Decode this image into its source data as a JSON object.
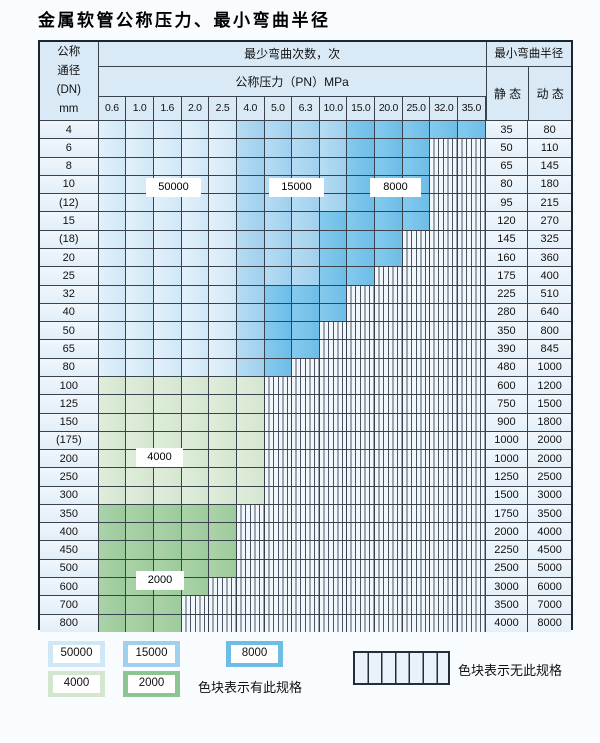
{
  "title": "金属软管公称压力、最小弯曲半径",
  "table": {
    "corner": {
      "lines": [
        "公称",
        "通径",
        "(DN)",
        "mm"
      ]
    },
    "bend_header": "最少弯曲次数，次",
    "pressure_header": "公称压力（PN）MPa",
    "radius_header": "最小弯曲半径",
    "static_label": "静 态",
    "dynamic_label": "动 态",
    "pressure_columns": [
      "0.6",
      "1.0",
      "1.6",
      "2.0",
      "2.5",
      "4.0",
      "5.0",
      "6.3",
      "10.0",
      "15.0",
      "20.0",
      "25.0",
      "32.0",
      "35.0"
    ],
    "cycle_classes": {
      "A": "50000",
      "B": "15000",
      "C": "8000",
      "D": "4000",
      "E": "2000",
      "X": "none"
    },
    "rows": [
      {
        "dn": "4",
        "pattern": "AAAAABBBBCCCCC",
        "static": "35",
        "dynamic": "80"
      },
      {
        "dn": "6",
        "pattern": "AAAAABBBBCCCXX",
        "static": "50",
        "dynamic": "110"
      },
      {
        "dn": "8",
        "pattern": "AAAAABBBBCCCXX",
        "static": "65",
        "dynamic": "145"
      },
      {
        "dn": "10",
        "pattern": "AAAAABBBBCCCXX",
        "static": "80",
        "dynamic": "180"
      },
      {
        "dn": "(12)",
        "pattern": "AAAAABBBBCCCXX",
        "static": "95",
        "dynamic": "215"
      },
      {
        "dn": "15",
        "pattern": "AAAAABBBCCCCXX",
        "static": "120",
        "dynamic": "270"
      },
      {
        "dn": "(18)",
        "pattern": "AAAAABBBCCCXXX",
        "static": "145",
        "dynamic": "325"
      },
      {
        "dn": "20",
        "pattern": "AAAAABBBCCCXXX",
        "static": "160",
        "dynamic": "360"
      },
      {
        "dn": "25",
        "pattern": "AAAAABBBCCXXXX",
        "static": "175",
        "dynamic": "400"
      },
      {
        "dn": "32",
        "pattern": "AAAAABCCCXXXXX",
        "static": "225",
        "dynamic": "510"
      },
      {
        "dn": "40",
        "pattern": "AAAAABCCCXXXXX",
        "static": "280",
        "dynamic": "640"
      },
      {
        "dn": "50",
        "pattern": "AAAAABCCXXXXXX",
        "static": "350",
        "dynamic": "800"
      },
      {
        "dn": "65",
        "pattern": "AAAAABCCXXXXXX",
        "static": "390",
        "dynamic": "845"
      },
      {
        "dn": "80",
        "pattern": "AAAAABCXXXXXXX",
        "static": "480",
        "dynamic": "1000"
      },
      {
        "dn": "100",
        "pattern": "DDDDDDXXXXXXXX",
        "static": "600",
        "dynamic": "1200"
      },
      {
        "dn": "125",
        "pattern": "DDDDDDXXXXXXXX",
        "static": "750",
        "dynamic": "1500"
      },
      {
        "dn": "150",
        "pattern": "DDDDDDXXXXXXXX",
        "static": "900",
        "dynamic": "1800"
      },
      {
        "dn": "(175)",
        "pattern": "DDDDDDXXXXXXXX",
        "static": "1000",
        "dynamic": "2000"
      },
      {
        "dn": "200",
        "pattern": "DDDDDDXXXXXXXX",
        "static": "1000",
        "dynamic": "2000"
      },
      {
        "dn": "250",
        "pattern": "DDDDDDXXXXXXXX",
        "static": "1250",
        "dynamic": "2500"
      },
      {
        "dn": "300",
        "pattern": "DDDDDDXXXXXXXX",
        "static": "1500",
        "dynamic": "3000"
      },
      {
        "dn": "350",
        "pattern": "EEEEEXXXXXXXXX",
        "static": "1750",
        "dynamic": "3500"
      },
      {
        "dn": "400",
        "pattern": "EEEEEXXXXXXXXX",
        "static": "2000",
        "dynamic": "4000"
      },
      {
        "dn": "450",
        "pattern": "EEEEEXXXXXXXXX",
        "static": "2250",
        "dynamic": "4500"
      },
      {
        "dn": "500",
        "pattern": "EEEEEXXXXXXXXX",
        "static": "2500",
        "dynamic": "5000"
      },
      {
        "dn": "600",
        "pattern": "EEEEXXXXXXXXXX",
        "static": "3000",
        "dynamic": "6000"
      },
      {
        "dn": "700",
        "pattern": "EEEXXXXXXXXXXX",
        "static": "3500",
        "dynamic": "7000"
      },
      {
        "dn": "800",
        "pattern": "EEEXXXXXXXXXXX",
        "static": "4000",
        "dynamic": "8000"
      }
    ]
  },
  "overlay_labels": [
    "50000",
    "15000",
    "8000",
    "4000",
    "2000"
  ],
  "legend": {
    "has_spec_items": [
      "50000",
      "15000",
      "8000",
      "4000",
      "2000"
    ],
    "has_spec_text": "色块表示有此规格",
    "no_spec_text": "色块表示无此规格"
  },
  "colors": {
    "cycle_50000": "#cfe7f7",
    "cycle_15000": "#9fd0ee",
    "cycle_8000": "#6dbde7",
    "cycle_4000": "#d4e6cf",
    "cycle_2000": "#9ccb9b",
    "header_bg": "#d9e9f6",
    "grid_line": "#39424d"
  }
}
